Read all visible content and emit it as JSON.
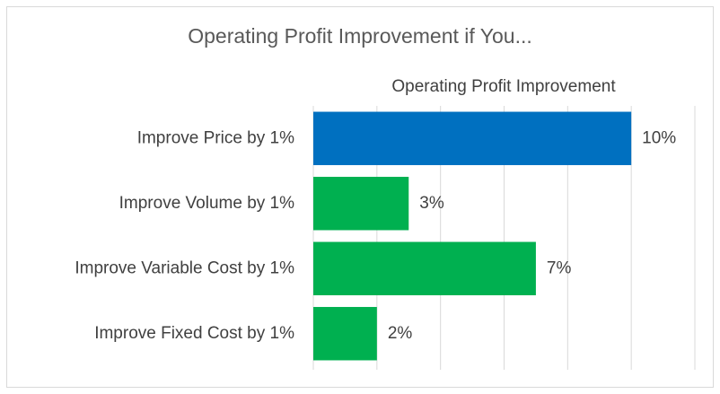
{
  "chart_data": {
    "type": "bar",
    "orientation": "horizontal",
    "title": "Operating Profit Improvement if You...",
    "x_label": "Operating Profit Improvement",
    "categories": [
      "Improve Price by 1%",
      "Improve Volume by 1%",
      "Improve Variable Cost by 1%",
      "Improve Fixed Cost by 1%"
    ],
    "values": [
      10,
      3,
      7,
      2
    ],
    "value_labels": [
      "10%",
      "3%",
      "7%",
      "2%"
    ],
    "colors": [
      "#0070c0",
      "#00b050",
      "#00b050",
      "#00b050"
    ],
    "xlim": [
      0,
      12
    ],
    "xticks": [
      0,
      2,
      4,
      6,
      8,
      10,
      12
    ],
    "grid": true
  }
}
